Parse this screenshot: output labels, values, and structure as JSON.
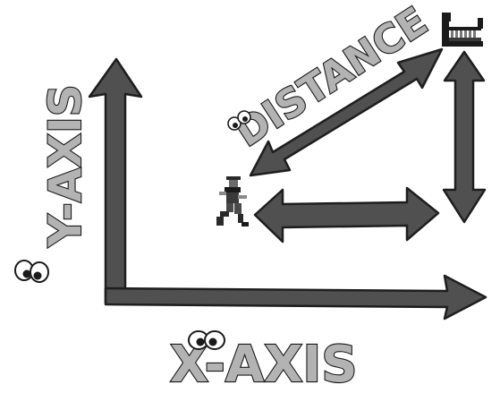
{
  "labels": {
    "y_axis": "Y-AXIS",
    "x_axis": "X-AXIS",
    "distance": "DISTANCE"
  },
  "icons": {
    "runner": "pixel-runner-icon",
    "crocodile": "pixel-crocodile-icon"
  },
  "colors": {
    "arrow_fill": "#505050",
    "outline": "#1e1e1e",
    "label_fill": "#b3b3b3",
    "background": "#ffffff"
  }
}
